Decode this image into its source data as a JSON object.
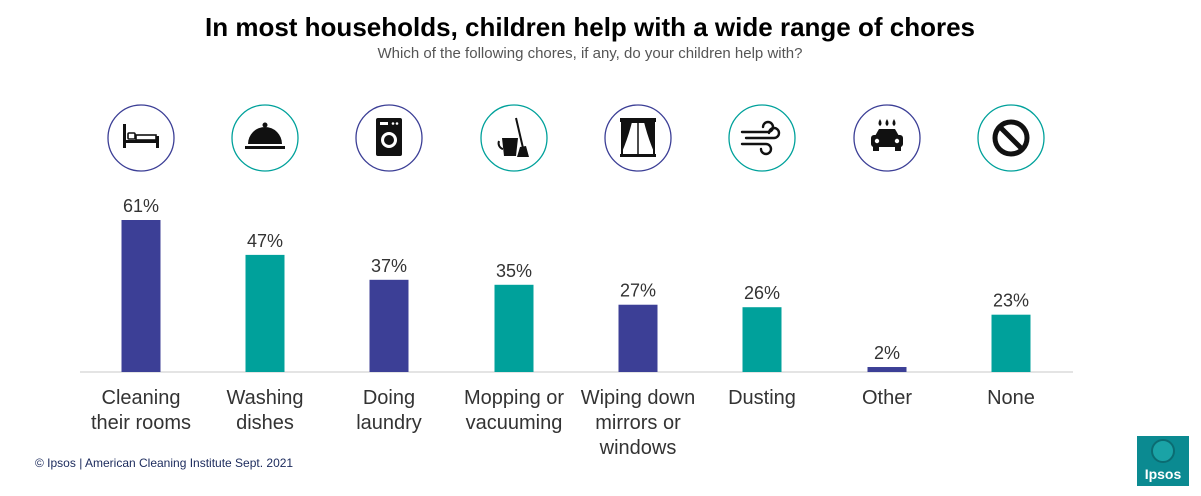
{
  "title": "In most households, children help with a wide range of chores",
  "subtitle": "Which of the following chores, if any, do your children help with?",
  "footer": "© Ipsos | American Cleaning Institute Sept. 2021",
  "logo_text": "Ipsos",
  "colors": {
    "purple": "#3c3f96",
    "teal": "#00a19b"
  },
  "chart_data": {
    "type": "bar",
    "title": "In most households, children help with a wide range of chores",
    "subtitle": "Which of the following chores, if any, do your children help with?",
    "categories": [
      [
        "Cleaning",
        "their rooms"
      ],
      [
        "Washing",
        "dishes"
      ],
      [
        "Doing",
        "laundry"
      ],
      [
        "Mopping or",
        "vacuuming"
      ],
      [
        "Wiping down",
        "mirrors or",
        "windows"
      ],
      [
        "Dusting"
      ],
      [
        "Other"
      ],
      [
        "None"
      ]
    ],
    "values": [
      61,
      47,
      37,
      35,
      27,
      26,
      2,
      23
    ],
    "value_labels": [
      "61%",
      "47%",
      "37%",
      "35%",
      "27%",
      "26%",
      "2%",
      "23%"
    ],
    "bar_colors": [
      "#3c3f96",
      "#00a19b",
      "#3c3f96",
      "#00a19b",
      "#3c3f96",
      "#00a19b",
      "#3c3f96",
      "#00a19b"
    ],
    "icons": [
      "bed-icon",
      "cloche-icon",
      "washing-machine-icon",
      "mop-bucket-icon",
      "window-icon",
      "wind-icon",
      "car-wash-icon",
      "prohibited-icon"
    ],
    "icon_ring_colors": [
      "#3c3f96",
      "#00a19b",
      "#3c3f96",
      "#00a19b",
      "#3c3f96",
      "#00a19b",
      "#3c3f96",
      "#00a19b"
    ],
    "ylim": [
      0,
      65
    ],
    "xlabel": "",
    "ylabel": "",
    "grid": false,
    "legend": "none"
  }
}
